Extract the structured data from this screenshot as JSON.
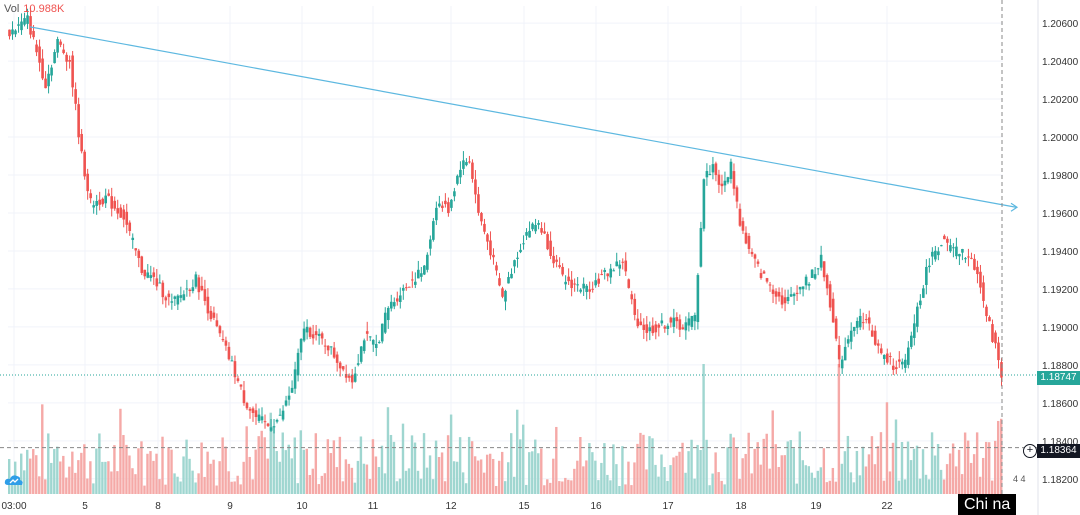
{
  "volume": {
    "label": "Vol",
    "value": "10.988K"
  },
  "current_price_tag": "1.18747",
  "crosshair_price_tag": "1.18364",
  "axis_badges": "4 4",
  "watermark": "Chi na",
  "colors": {
    "up": "#26a69a",
    "down": "#ef5350",
    "trendline": "#5db8e0",
    "grid": "#f0f3fa"
  },
  "chart_data": {
    "type": "candlestick",
    "title": "",
    "xlabel": "",
    "ylabel": "",
    "y_ticks": [
      1.206,
      1.204,
      1.202,
      1.2,
      1.198,
      1.196,
      1.194,
      1.192,
      1.19,
      1.188,
      1.186,
      1.184,
      1.182
    ],
    "x_ticks": [
      "03:00",
      "5",
      "8",
      "9",
      "10",
      "11",
      "12",
      "15",
      "16",
      "17",
      "18",
      "19",
      "22"
    ],
    "ylim": [
      1.1812,
      1.2069
    ],
    "last_price": 1.18747,
    "crosshair_price": 1.18364,
    "trendline": {
      "start_price": 1.2058,
      "end_price": 1.1963
    },
    "close_path": [
      [
        0,
        1.2055
      ],
      [
        6,
        1.2062
      ],
      [
        12,
        1.2028
      ],
      [
        16,
        1.205
      ],
      [
        20,
        1.204
      ],
      [
        24,
        1.199
      ],
      [
        27,
        1.1965
      ],
      [
        32,
        1.1968
      ],
      [
        38,
        1.1958
      ],
      [
        44,
        1.193
      ],
      [
        48,
        1.1925
      ],
      [
        54,
        1.1912
      ],
      [
        58,
        1.1918
      ],
      [
        62,
        1.1925
      ],
      [
        66,
        1.191
      ],
      [
        70,
        1.1895
      ],
      [
        74,
        1.188
      ],
      [
        78,
        1.1862
      ],
      [
        82,
        1.1852
      ],
      [
        86,
        1.1848
      ],
      [
        90,
        1.1852
      ],
      [
        94,
        1.1868
      ],
      [
        98,
        1.19
      ],
      [
        102,
        1.1895
      ],
      [
        106,
        1.189
      ],
      [
        110,
        1.188
      ],
      [
        114,
        1.1872
      ],
      [
        118,
        1.1895
      ],
      [
        122,
        1.189
      ],
      [
        126,
        1.191
      ],
      [
        130,
        1.1918
      ],
      [
        134,
        1.1925
      ],
      [
        138,
        1.193
      ],
      [
        142,
        1.1965
      ],
      [
        146,
        1.1962
      ],
      [
        150,
        1.1985
      ],
      [
        153,
        1.1988
      ],
      [
        156,
        1.196
      ],
      [
        160,
        1.194
      ],
      [
        164,
        1.1915
      ],
      [
        168,
        1.1935
      ],
      [
        172,
        1.195
      ],
      [
        176,
        1.1955
      ],
      [
        180,
        1.194
      ],
      [
        184,
        1.1925
      ],
      [
        188,
        1.1922
      ],
      [
        192,
        1.192
      ],
      [
        196,
        1.1925
      ],
      [
        200,
        1.193
      ],
      [
        204,
        1.1935
      ],
      [
        208,
        1.1905
      ],
      [
        212,
        1.1898
      ],
      [
        216,
        1.19
      ],
      [
        220,
        1.1903
      ],
      [
        224,
        1.19
      ],
      [
        228,
        1.1905
      ],
      [
        231,
        1.1978
      ],
      [
        234,
        1.1985
      ],
      [
        237,
        1.1972
      ],
      [
        240,
        1.1985
      ],
      [
        243,
        1.1955
      ],
      [
        246,
        1.194
      ],
      [
        250,
        1.1928
      ],
      [
        254,
        1.192
      ],
      [
        258,
        1.1912
      ],
      [
        262,
        1.192
      ],
      [
        266,
        1.1925
      ],
      [
        270,
        1.1935
      ],
      [
        274,
        1.1905
      ],
      [
        276,
        1.188
      ],
      [
        280,
        1.19
      ],
      [
        284,
        1.1905
      ],
      [
        286,
        1.19
      ],
      [
        290,
        1.1885
      ],
      [
        294,
        1.188
      ],
      [
        298,
        1.188
      ],
      [
        302,
        1.191
      ],
      [
        306,
        1.1935
      ],
      [
        310,
        1.1945
      ],
      [
        314,
        1.194
      ],
      [
        318,
        1.1938
      ],
      [
        322,
        1.193
      ],
      [
        325,
        1.1905
      ],
      [
        328,
        1.189
      ],
      [
        330,
        1.1875
      ]
    ]
  }
}
